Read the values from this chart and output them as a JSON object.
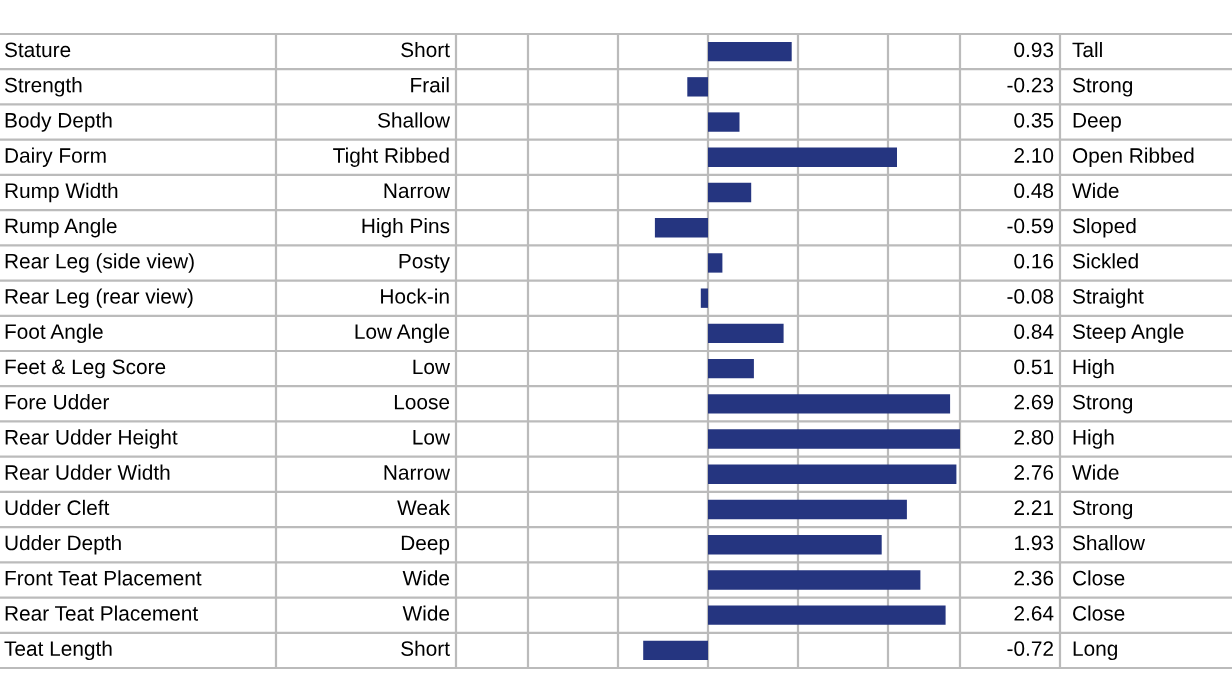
{
  "chart_data": {
    "type": "bar",
    "orientation": "horizontal",
    "categories": [
      "Stature",
      "Strength",
      "Body Depth",
      "Dairy Form",
      "Rump Width",
      "Rump Angle",
      "Rear Leg (side view)",
      "Rear Leg (rear view)",
      "Foot Angle",
      "Feet & Leg Score",
      "Fore Udder",
      "Rear Udder Height",
      "Rear Udder Width",
      "Udder Cleft",
      "Udder Depth",
      "Front Teat Placement",
      "Rear Teat Placement",
      "Teat Length"
    ],
    "values": [
      0.93,
      -0.23,
      0.35,
      2.1,
      0.48,
      -0.59,
      0.16,
      -0.08,
      0.84,
      0.51,
      2.69,
      2.8,
      2.76,
      2.21,
      1.93,
      2.36,
      2.64,
      -0.72
    ],
    "value_labels": [
      "0.93",
      "-0.23",
      "0.35",
      "2.10",
      "0.48",
      "-0.59",
      "0.16",
      "-0.08",
      "0.84",
      "0.51",
      "2.69",
      "2.80",
      "2.76",
      "2.21",
      "1.93",
      "2.36",
      "2.64",
      "-0.72"
    ],
    "color": "#253580",
    "xlim": [
      -2.8,
      2.8
    ],
    "xticks": [
      {
        "value": -2,
        "label": null
      },
      {
        "value": -1,
        "label": null
      },
      {
        "value": 0,
        "label": null
      },
      {
        "value": 1,
        "label": null
      },
      {
        "value": 2,
        "label": null
      }
    ],
    "grid": "x",
    "tick_labels": "y",
    "annotations": [
      "Short",
      "Tall",
      "Frail",
      "Strong",
      "Shallow",
      "Deep",
      "Tight Ribbed",
      "Open Ribbed",
      "Narrow",
      "Wide",
      "High Pins",
      "Sloped",
      "Posty",
      "Sickled",
      "Hock-in",
      "Straight",
      "Low Angle",
      "Steep Angle",
      "Low",
      "High",
      "Loose",
      "Strong",
      "Low",
      "High",
      "Narrow",
      "Wide",
      "Weak",
      "Strong",
      "Deep",
      "Shallow",
      "Wide",
      "Close",
      "Wide",
      "Close",
      "Short",
      "Long"
    ]
  }
}
